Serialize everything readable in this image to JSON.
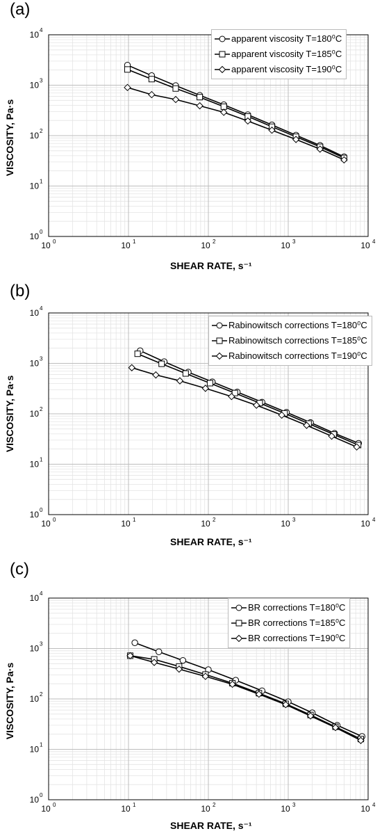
{
  "panels": [
    {
      "label": "(a)",
      "xlabel": "SHEAR RATE, s⁻¹",
      "ylabel": "VISCOSITY, Pa·s"
    },
    {
      "label": "(b)",
      "xlabel": "SHEAR RATE, s⁻¹",
      "ylabel": "VISCOSITY, Pa·s"
    },
    {
      "label": "(c)",
      "xlabel": "SHEAR RATE, s⁻¹",
      "ylabel": "VISCOSITY, Pa·s"
    }
  ],
  "tick_labels": [
    "10",
    "10",
    "10",
    "10",
    "10"
  ],
  "tick_exponents": [
    "0",
    "1",
    "2",
    "3",
    "4"
  ],
  "chart_data": [
    {
      "type": "line",
      "xscale": "log",
      "yscale": "log",
      "xlim": [
        1,
        10000
      ],
      "ylim": [
        1,
        10000
      ],
      "grid": true,
      "legend": "top-right",
      "xlabel": "SHEAR RATE, s⁻¹",
      "ylabel": "VISCOSITY, Pa·s",
      "series": [
        {
          "name": "apparent viscosity T=180⁰C",
          "marker": "circle",
          "x": [
            9.7,
            19.5,
            39,
            78,
            156,
            312,
            625,
            1250,
            2500,
            5000
          ],
          "y": [
            2500,
            1550,
            980,
            630,
            410,
            260,
            163,
            102,
            64,
            38
          ]
        },
        {
          "name": "apparent viscosity T=185⁰C",
          "marker": "square",
          "x": [
            9.7,
            19.5,
            39,
            78,
            156,
            312,
            625,
            1250,
            2500,
            5000
          ],
          "y": [
            2050,
            1320,
            860,
            580,
            375,
            240,
            150,
            95,
            60,
            36
          ]
        },
        {
          "name": "apparent viscosity T=190⁰C",
          "marker": "diamond",
          "x": [
            9.7,
            19.5,
            39,
            78,
            156,
            312,
            625,
            1250,
            2500,
            5000
          ],
          "y": [
            900,
            650,
            520,
            390,
            290,
            195,
            128,
            84,
            54,
            33
          ]
        }
      ]
    },
    {
      "type": "line",
      "xscale": "log",
      "yscale": "log",
      "xlim": [
        1,
        10000
      ],
      "ylim": [
        1,
        10000
      ],
      "grid": true,
      "legend": "top-right",
      "xlabel": "SHEAR RATE, s⁻¹",
      "ylabel": "VISCOSITY, Pa·s",
      "series": [
        {
          "name": "Rabinowitsch corrections T=180⁰C",
          "marker": "circle",
          "x": [
            14,
            28,
            56,
            112,
            230,
            470,
            950,
            1900,
            3800,
            7600
          ],
          "y": [
            1780,
            1080,
            670,
            430,
            270,
            170,
            107,
            67,
            41,
            26
          ]
        },
        {
          "name": "Rabinowitsch corrections T=185⁰C",
          "marker": "square",
          "x": [
            13,
            26,
            52,
            105,
            215,
            440,
            900,
            1800,
            3700,
            7500
          ],
          "y": [
            1550,
            980,
            630,
            405,
            258,
            163,
            102,
            64,
            39,
            24
          ]
        },
        {
          "name": "Rabinowitsch corrections T=190⁰C",
          "marker": "diamond",
          "x": [
            11,
            22,
            44,
            92,
            195,
            400,
            830,
            1700,
            3500,
            7200
          ],
          "y": [
            820,
            590,
            450,
            320,
            220,
            148,
            94,
            59,
            36,
            22
          ]
        }
      ]
    },
    {
      "type": "line",
      "xscale": "log",
      "yscale": "log",
      "xlim": [
        1,
        10000
      ],
      "ylim": [
        1,
        10000
      ],
      "grid": true,
      "legend": "top-right",
      "xlabel": "SHEAR RATE, s⁻¹",
      "ylabel": "VISCOSITY, Pa·s",
      "series": [
        {
          "name": "BR corrections T=180⁰C",
          "marker": "circle",
          "x": [
            12,
            24,
            48,
            100,
            220,
            470,
            1000,
            2000,
            4100,
            8400
          ],
          "y": [
            1300,
            860,
            580,
            380,
            235,
            145,
            88,
            53,
            30,
            18
          ]
        },
        {
          "name": "BR corrections T=185⁰C",
          "marker": "square",
          "x": [
            10.5,
            21,
            43,
            92,
            200,
            430,
            930,
            1900,
            3900,
            8100
          ],
          "y": [
            720,
            610,
            440,
            305,
            205,
            130,
            80,
            48,
            28,
            16
          ]
        },
        {
          "name": "BR corrections T=190⁰C",
          "marker": "diamond",
          "x": [
            10.5,
            21,
            43,
            92,
            200,
            430,
            930,
            1900,
            3900,
            8100
          ],
          "y": [
            720,
            530,
            390,
            280,
            195,
            124,
            77,
            46,
            27,
            15
          ]
        }
      ]
    }
  ]
}
